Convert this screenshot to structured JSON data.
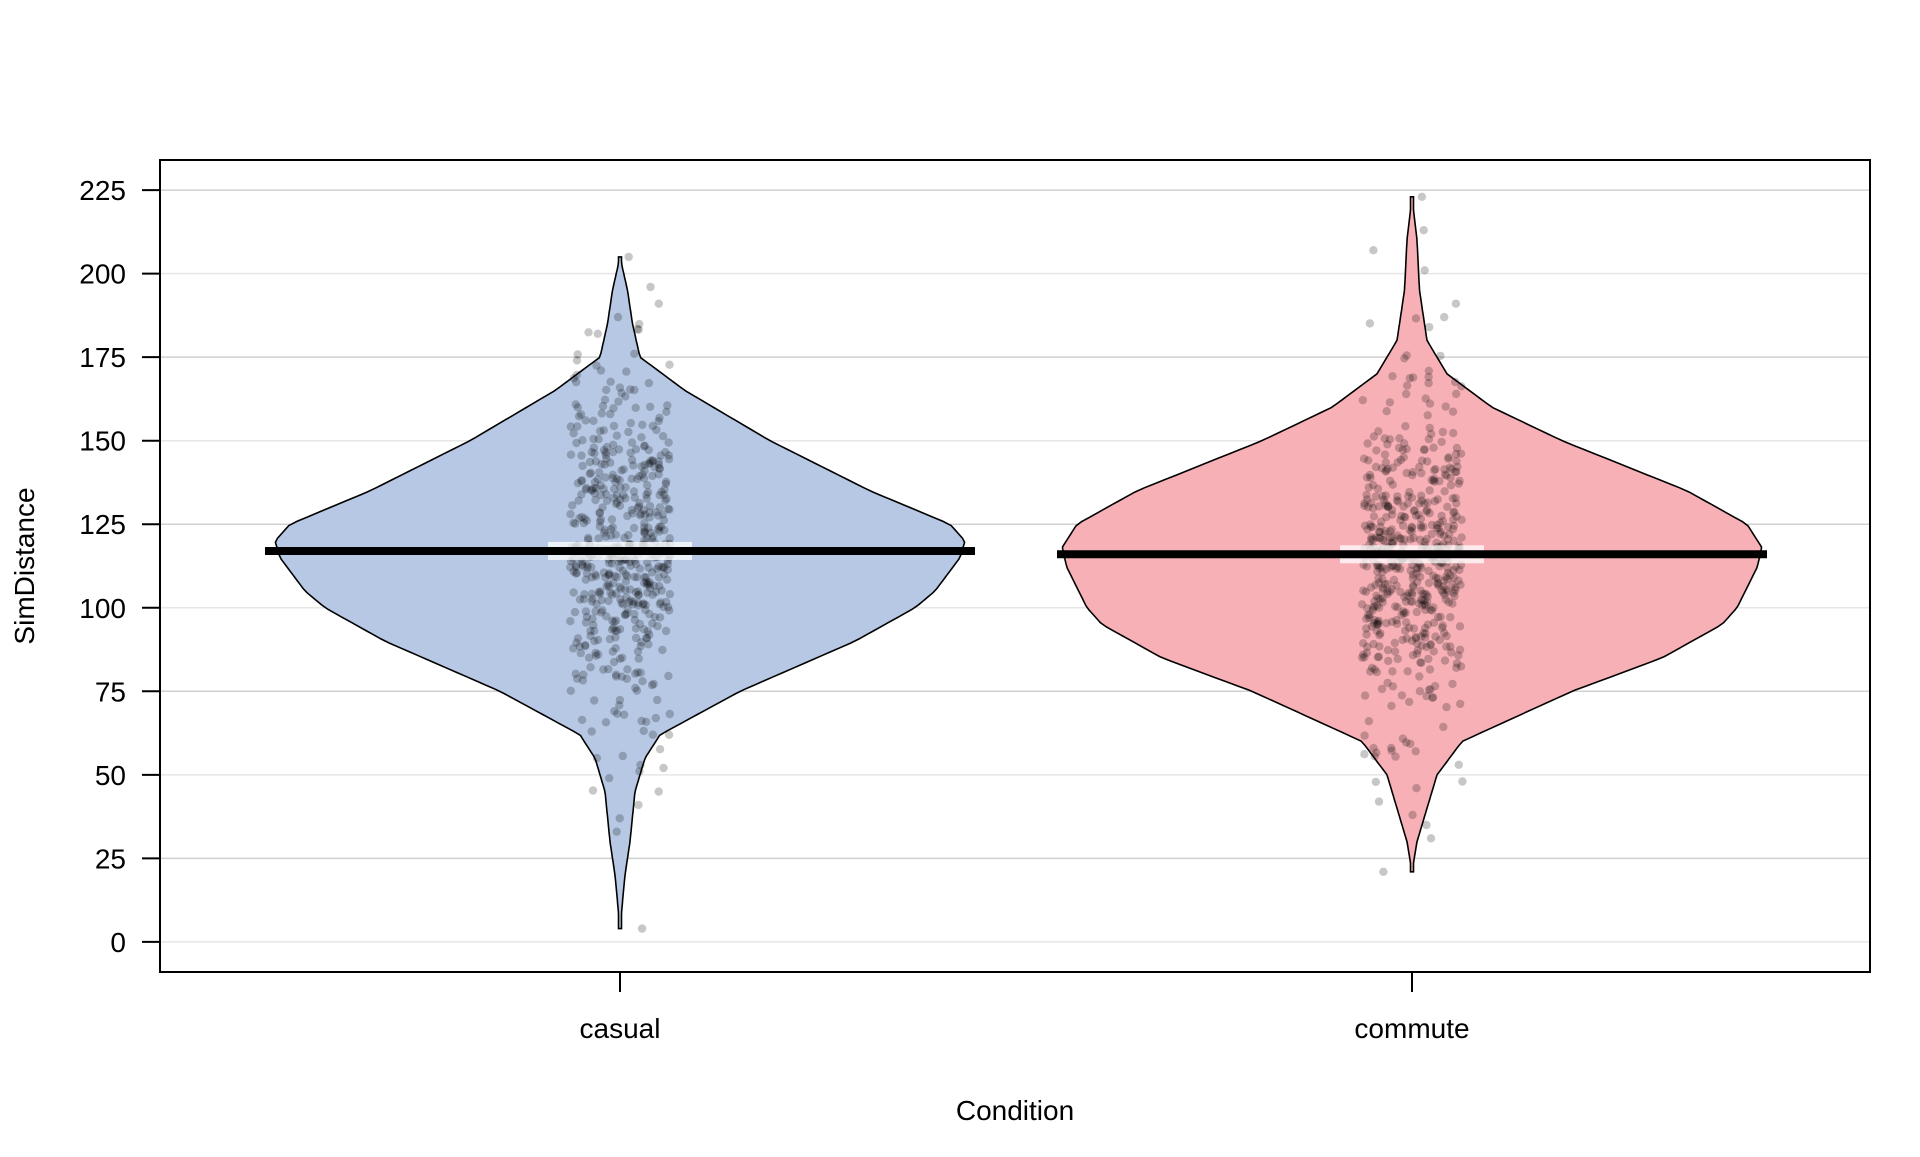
{
  "chart_data": {
    "type": "violin",
    "title": "",
    "xlabel": "Condition",
    "ylabel": "SimDistance",
    "ylim": [
      -9,
      234
    ],
    "yticks": [
      0,
      25,
      50,
      75,
      100,
      125,
      150,
      175,
      200,
      225
    ],
    "ytick_labels": [
      "0",
      "25",
      "50",
      "75",
      "100",
      "125",
      "150",
      "175",
      "200",
      "225"
    ],
    "grid": true,
    "categories": [
      "casual",
      "commute"
    ],
    "series": [
      {
        "category": "casual",
        "color": "#b6c8e4",
        "mean": 117,
        "median": 117,
        "min": 4,
        "max": 205,
        "density_profile": [
          [
            4,
            0.0
          ],
          [
            20,
            0.01
          ],
          [
            30,
            0.02
          ],
          [
            45,
            0.03
          ],
          [
            55,
            0.05
          ],
          [
            62,
            0.08
          ],
          [
            75,
            0.24
          ],
          [
            90,
            0.47
          ],
          [
            100,
            0.59
          ],
          [
            105,
            0.63
          ],
          [
            115,
            0.68
          ],
          [
            120,
            0.69
          ],
          [
            125,
            0.66
          ],
          [
            135,
            0.5
          ],
          [
            150,
            0.3
          ],
          [
            165,
            0.13
          ],
          [
            175,
            0.04
          ],
          [
            185,
            0.025
          ],
          [
            195,
            0.015
          ],
          [
            205,
            0.0
          ]
        ],
        "outer_points": [
          205,
          196,
          191,
          187,
          182,
          176,
          171,
          68,
          62,
          55,
          49,
          45,
          41,
          37,
          33,
          4
        ]
      },
      {
        "category": "commute",
        "color": "#f7b0b6",
        "mean": 116,
        "median": 116,
        "min": 21,
        "max": 223,
        "density_profile": [
          [
            21,
            0.0
          ],
          [
            30,
            0.01
          ],
          [
            40,
            0.03
          ],
          [
            50,
            0.05
          ],
          [
            60,
            0.1
          ],
          [
            75,
            0.32
          ],
          [
            85,
            0.5
          ],
          [
            95,
            0.62
          ],
          [
            100,
            0.65
          ],
          [
            112,
            0.69
          ],
          [
            118,
            0.7
          ],
          [
            125,
            0.67
          ],
          [
            135,
            0.55
          ],
          [
            150,
            0.3
          ],
          [
            160,
            0.16
          ],
          [
            170,
            0.07
          ],
          [
            180,
            0.03
          ],
          [
            195,
            0.015
          ],
          [
            210,
            0.01
          ],
          [
            223,
            0.0
          ]
        ],
        "outer_points": [
          223,
          213,
          207,
          201,
          191,
          187,
          184,
          164,
          144,
          139,
          81,
          58,
          53,
          48,
          46,
          42,
          38,
          35,
          31,
          21
        ]
      }
    ]
  }
}
